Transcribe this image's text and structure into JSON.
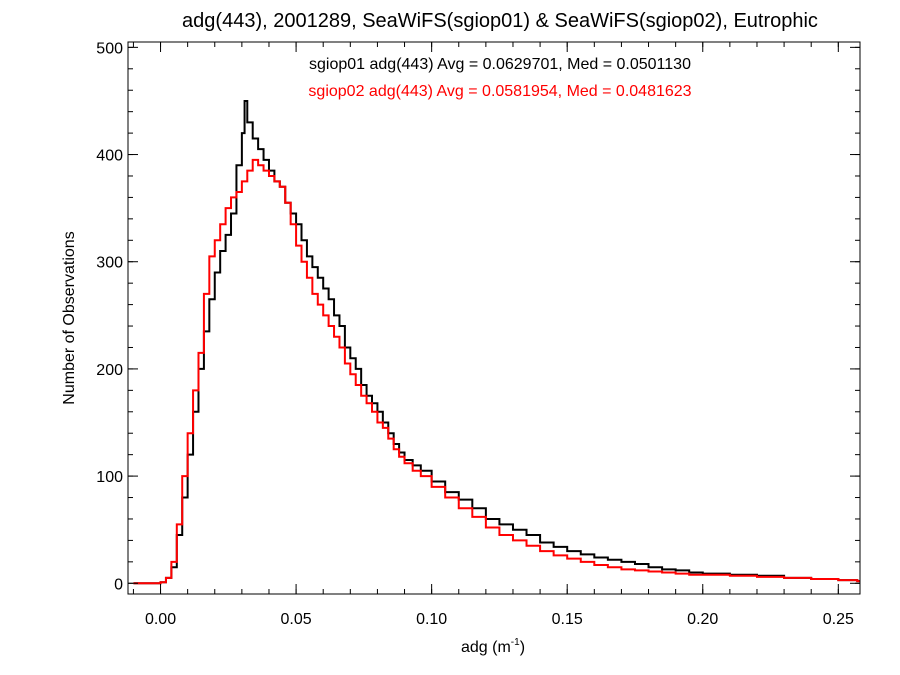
{
  "chart_data": {
    "type": "line",
    "style": "step-histogram",
    "title": "adg(443), 2001289, SeaWiFS(sgiop01) & SeaWiFS(sgiop02), Eutrophic",
    "xlabel": "adg (m",
    "xlabel_sup": "-1",
    "xlabel_end": ")",
    "ylabel": "Number of Observations",
    "xlim": [
      -0.012,
      0.258
    ],
    "ylim": [
      -10,
      505
    ],
    "xticks": [
      0.0,
      0.05,
      0.1,
      0.15,
      0.2,
      0.25
    ],
    "xtick_labels": [
      "0.00",
      "0.05",
      "0.10",
      "0.15",
      "0.20",
      "0.25"
    ],
    "yticks": [
      0,
      100,
      200,
      300,
      400,
      500
    ],
    "ytick_labels": [
      "0",
      "100",
      "200",
      "300",
      "400",
      "500"
    ],
    "grid": false,
    "series": [
      {
        "name": "sgiop01",
        "legend_text": "sgiop01 adg(443) Avg = 0.0629701, Med = 0.0501130",
        "color": "#000000",
        "points": [
          [
            -0.01,
            0
          ],
          [
            -0.004,
            0
          ],
          [
            0.0,
            1
          ],
          [
            0.002,
            5
          ],
          [
            0.004,
            15
          ],
          [
            0.006,
            45
          ],
          [
            0.008,
            80
          ],
          [
            0.01,
            120
          ],
          [
            0.012,
            160
          ],
          [
            0.014,
            200
          ],
          [
            0.016,
            235
          ],
          [
            0.018,
            265
          ],
          [
            0.02,
            290
          ],
          [
            0.022,
            310
          ],
          [
            0.024,
            325
          ],
          [
            0.026,
            345
          ],
          [
            0.028,
            390
          ],
          [
            0.03,
            420
          ],
          [
            0.031,
            450
          ],
          [
            0.032,
            430
          ],
          [
            0.034,
            415
          ],
          [
            0.036,
            405
          ],
          [
            0.038,
            395
          ],
          [
            0.04,
            385
          ],
          [
            0.042,
            375
          ],
          [
            0.044,
            370
          ],
          [
            0.046,
            355
          ],
          [
            0.048,
            345
          ],
          [
            0.05,
            335
          ],
          [
            0.052,
            320
          ],
          [
            0.054,
            305
          ],
          [
            0.056,
            295
          ],
          [
            0.058,
            285
          ],
          [
            0.06,
            275
          ],
          [
            0.062,
            265
          ],
          [
            0.064,
            250
          ],
          [
            0.066,
            240
          ],
          [
            0.068,
            220
          ],
          [
            0.07,
            210
          ],
          [
            0.072,
            200
          ],
          [
            0.074,
            185
          ],
          [
            0.076,
            175
          ],
          [
            0.078,
            168
          ],
          [
            0.08,
            160
          ],
          [
            0.082,
            150
          ],
          [
            0.084,
            140
          ],
          [
            0.086,
            130
          ],
          [
            0.088,
            122
          ],
          [
            0.09,
            115
          ],
          [
            0.093,
            110
          ],
          [
            0.096,
            105
          ],
          [
            0.1,
            95
          ],
          [
            0.105,
            85
          ],
          [
            0.11,
            78
          ],
          [
            0.115,
            70
          ],
          [
            0.12,
            60
          ],
          [
            0.125,
            55
          ],
          [
            0.13,
            50
          ],
          [
            0.135,
            45
          ],
          [
            0.14,
            38
          ],
          [
            0.145,
            34
          ],
          [
            0.15,
            30
          ],
          [
            0.155,
            27
          ],
          [
            0.16,
            24
          ],
          [
            0.165,
            22
          ],
          [
            0.17,
            20
          ],
          [
            0.175,
            18
          ],
          [
            0.18,
            15
          ],
          [
            0.185,
            13
          ],
          [
            0.19,
            12
          ],
          [
            0.195,
            10
          ],
          [
            0.2,
            9
          ],
          [
            0.21,
            8
          ],
          [
            0.22,
            7
          ],
          [
            0.23,
            5
          ],
          [
            0.24,
            4
          ],
          [
            0.25,
            3
          ],
          [
            0.257,
            2
          ]
        ]
      },
      {
        "name": "sgiop02",
        "legend_text": "sgiop02 adg(443) Avg = 0.0581954, Med = 0.0481623",
        "color": "#ff0000",
        "points": [
          [
            -0.01,
            0
          ],
          [
            -0.004,
            0
          ],
          [
            0.0,
            1
          ],
          [
            0.002,
            5
          ],
          [
            0.004,
            20
          ],
          [
            0.006,
            55
          ],
          [
            0.008,
            100
          ],
          [
            0.01,
            140
          ],
          [
            0.012,
            180
          ],
          [
            0.014,
            215
          ],
          [
            0.016,
            270
          ],
          [
            0.018,
            305
          ],
          [
            0.02,
            320
          ],
          [
            0.022,
            335
          ],
          [
            0.024,
            350
          ],
          [
            0.026,
            360
          ],
          [
            0.028,
            365
          ],
          [
            0.03,
            375
          ],
          [
            0.032,
            385
          ],
          [
            0.034,
            395
          ],
          [
            0.036,
            390
          ],
          [
            0.038,
            385
          ],
          [
            0.04,
            380
          ],
          [
            0.042,
            375
          ],
          [
            0.044,
            370
          ],
          [
            0.046,
            355
          ],
          [
            0.048,
            335
          ],
          [
            0.05,
            315
          ],
          [
            0.052,
            300
          ],
          [
            0.054,
            285
          ],
          [
            0.056,
            270
          ],
          [
            0.058,
            260
          ],
          [
            0.06,
            250
          ],
          [
            0.062,
            240
          ],
          [
            0.064,
            230
          ],
          [
            0.066,
            220
          ],
          [
            0.068,
            205
          ],
          [
            0.07,
            195
          ],
          [
            0.072,
            185
          ],
          [
            0.074,
            175
          ],
          [
            0.076,
            168
          ],
          [
            0.078,
            160
          ],
          [
            0.08,
            150
          ],
          [
            0.082,
            145
          ],
          [
            0.084,
            135
          ],
          [
            0.086,
            125
          ],
          [
            0.088,
            118
          ],
          [
            0.09,
            112
          ],
          [
            0.093,
            105
          ],
          [
            0.096,
            100
          ],
          [
            0.1,
            90
          ],
          [
            0.105,
            80
          ],
          [
            0.11,
            70
          ],
          [
            0.115,
            62
          ],
          [
            0.12,
            52
          ],
          [
            0.125,
            45
          ],
          [
            0.13,
            40
          ],
          [
            0.135,
            35
          ],
          [
            0.14,
            30
          ],
          [
            0.145,
            26
          ],
          [
            0.15,
            23
          ],
          [
            0.155,
            20
          ],
          [
            0.16,
            17
          ],
          [
            0.165,
            15
          ],
          [
            0.17,
            13
          ],
          [
            0.175,
            12
          ],
          [
            0.18,
            11
          ],
          [
            0.185,
            10
          ],
          [
            0.19,
            9
          ],
          [
            0.195,
            8
          ],
          [
            0.2,
            8
          ],
          [
            0.21,
            7
          ],
          [
            0.22,
            6
          ],
          [
            0.23,
            5
          ],
          [
            0.24,
            4
          ],
          [
            0.25,
            3
          ],
          [
            0.257,
            2
          ]
        ]
      }
    ]
  }
}
